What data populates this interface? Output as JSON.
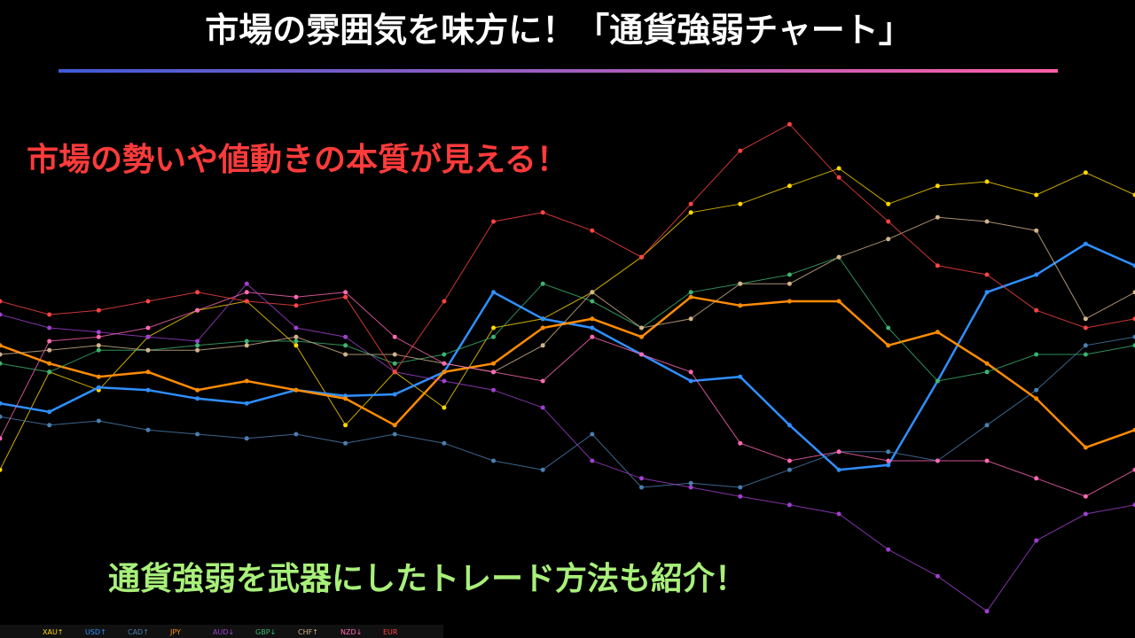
{
  "chart_data": {
    "type": "line",
    "title": "市場の雰囲気を味方に！「通貨強弱チャート」",
    "subtitle": "市場の勢いや値動きの本質が見える！",
    "annotation": "通貨強弱を武器にしたトレード方法も紹介！",
    "ylim": [
      0,
      100
    ],
    "series": [
      {
        "name": "XAU↑",
        "color": "#ffd700",
        "values": [
          28.3,
          46.7,
          43.3,
          53.3,
          58.3,
          60,
          51.7,
          36.7,
          46.7,
          40,
          55,
          56.7,
          61.7,
          68.3,
          76.7,
          78.3,
          81.7,
          85,
          78.3,
          81.7,
          82.5,
          80,
          84.2,
          80
        ]
      },
      {
        "name": "USD↑",
        "color": "#2f8fff",
        "values": [
          40.8,
          39.2,
          43.8,
          43.3,
          41.7,
          40.8,
          43.3,
          42.2,
          42.5,
          46.7,
          61.7,
          56.7,
          55,
          50,
          45,
          45.8,
          36.7,
          28.3,
          29.2,
          45,
          61.7,
          65,
          70.8,
          66.7
        ]
      },
      {
        "name": "CAD↑",
        "color": "#4a7fb0",
        "values": [
          38.3,
          36.7,
          37.5,
          35.8,
          35,
          34.2,
          35,
          33.3,
          35,
          33.3,
          30,
          28.3,
          35,
          25,
          25.8,
          25,
          28.3,
          31.7,
          31.7,
          30,
          36.7,
          43.3,
          51.7,
          53.3
        ]
      },
      {
        "name": "JPY",
        "color": "#ff8c00",
        "values": [
          51.7,
          48.3,
          45.8,
          46.7,
          43.3,
          45,
          43.3,
          41.7,
          36.7,
          46.7,
          48.3,
          55,
          56.7,
          53.3,
          60.8,
          59.2,
          60,
          60,
          51.7,
          54.2,
          48.3,
          41.7,
          32.5,
          35.8
        ]
      },
      {
        "name": "AUD↓",
        "color": "#a040d0",
        "values": [
          57.5,
          55,
          54.2,
          53.3,
          52.5,
          63.3,
          55,
          53.3,
          46.7,
          45,
          43.3,
          40,
          30,
          26.7,
          25,
          23.3,
          21.7,
          20,
          13.3,
          8.3,
          1.7,
          15,
          20,
          21.7
        ]
      },
      {
        "name": "GBP↓",
        "color": "#3cb371",
        "values": [
          48.3,
          46.7,
          50.8,
          50.8,
          51.7,
          52.5,
          52.5,
          51.7,
          48.3,
          50,
          53.3,
          63.3,
          60,
          55,
          61.7,
          63.3,
          65,
          68.3,
          55,
          45,
          46.7,
          50,
          50,
          51.7
        ]
      },
      {
        "name": "CHF↑",
        "color": "#d2b48c",
        "values": [
          50,
          50.8,
          51.7,
          50.8,
          50.8,
          51.7,
          53.3,
          50,
          50,
          48.3,
          46.7,
          51.7,
          61.7,
          55,
          56.7,
          63.3,
          63.3,
          68.3,
          71.7,
          75.8,
          75,
          73.3,
          56.7,
          61.7
        ]
      },
      {
        "name": "NZD↓",
        "color": "#ff69b4",
        "values": [
          34.2,
          52.5,
          53.3,
          55,
          58.3,
          61.7,
          60.8,
          61.7,
          53.3,
          48.3,
          46.7,
          45,
          53.3,
          50,
          46.7,
          33.3,
          30,
          31.7,
          30,
          30,
          30,
          26.7,
          23.3,
          28.3
        ]
      },
      {
        "name": "EUR",
        "color": "#ff4444",
        "values": [
          60,
          57.5,
          58.3,
          60,
          61.7,
          60,
          59.2,
          60.8,
          46.7,
          60,
          75,
          76.7,
          73.3,
          68.3,
          78.3,
          88.3,
          93.3,
          83.3,
          75,
          66.7,
          65,
          58.3,
          55,
          56.7
        ]
      }
    ]
  }
}
